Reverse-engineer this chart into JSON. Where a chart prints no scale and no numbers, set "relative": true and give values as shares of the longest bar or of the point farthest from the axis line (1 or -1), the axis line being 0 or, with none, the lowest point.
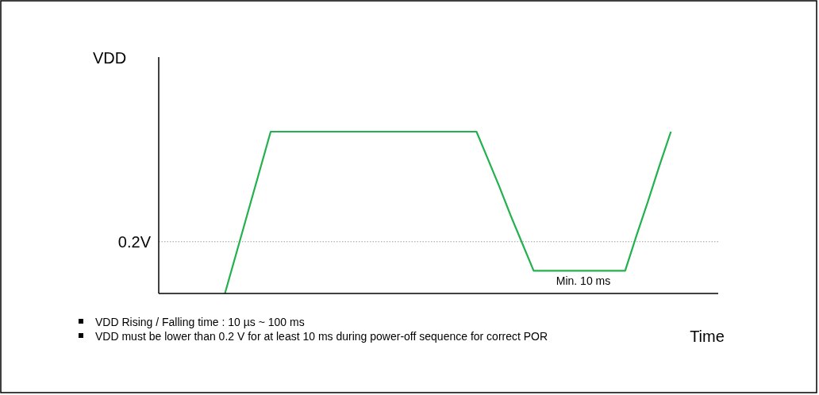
{
  "chart_data": {
    "type": "line",
    "relative": true,
    "ylabel": "VDD",
    "xlabel": "Time",
    "line_style": "solid",
    "categories": [
      null,
      null,
      null,
      null,
      null,
      null,
      null,
      null,
      null,
      null,
      null,
      null,
      null,
      null,
      null,
      null,
      null,
      null,
      null,
      null,
      null,
      null,
      null,
      null,
      null,
      null,
      null,
      null,
      null,
      null,
      null,
      null,
      null,
      null,
      null,
      null,
      null,
      null,
      null,
      null,
      null,
      null,
      null,
      null,
      null,
      null,
      null,
      null,
      null,
      null
    ],
    "series": [
      {
        "color": "#22b14c",
        "values": [
          null,
          null,
          null,
          null,
          null,
          null,
          0,
          0.25,
          0.5,
          0.75,
          1,
          1,
          1,
          1,
          1,
          1,
          1,
          1,
          1,
          1,
          1,
          1,
          1,
          1,
          1,
          1,
          1,
          1,
          1,
          0.83,
          0.66,
          0.48,
          0.31,
          0.14,
          0.14,
          0.14,
          0.14,
          0.14,
          0.14,
          0.14,
          0.14,
          0.14,
          0.36,
          0.57,
          0.79,
          1,
          null,
          null,
          null,
          null
        ]
      }
    ],
    "ref_lines": [
      {
        "axis": "y",
        "value": 0.32,
        "label": "0.2V",
        "color": "#a0a0a0",
        "line_style": "dotted"
      }
    ],
    "annotations": [
      "Min. 10 ms",
      "VDD Rising / Falling time : 10 µs ~ 100 ms",
      "VDD must be lower than 0.2 V for at least 10 ms during power-off sequence for correct POR"
    ]
  }
}
